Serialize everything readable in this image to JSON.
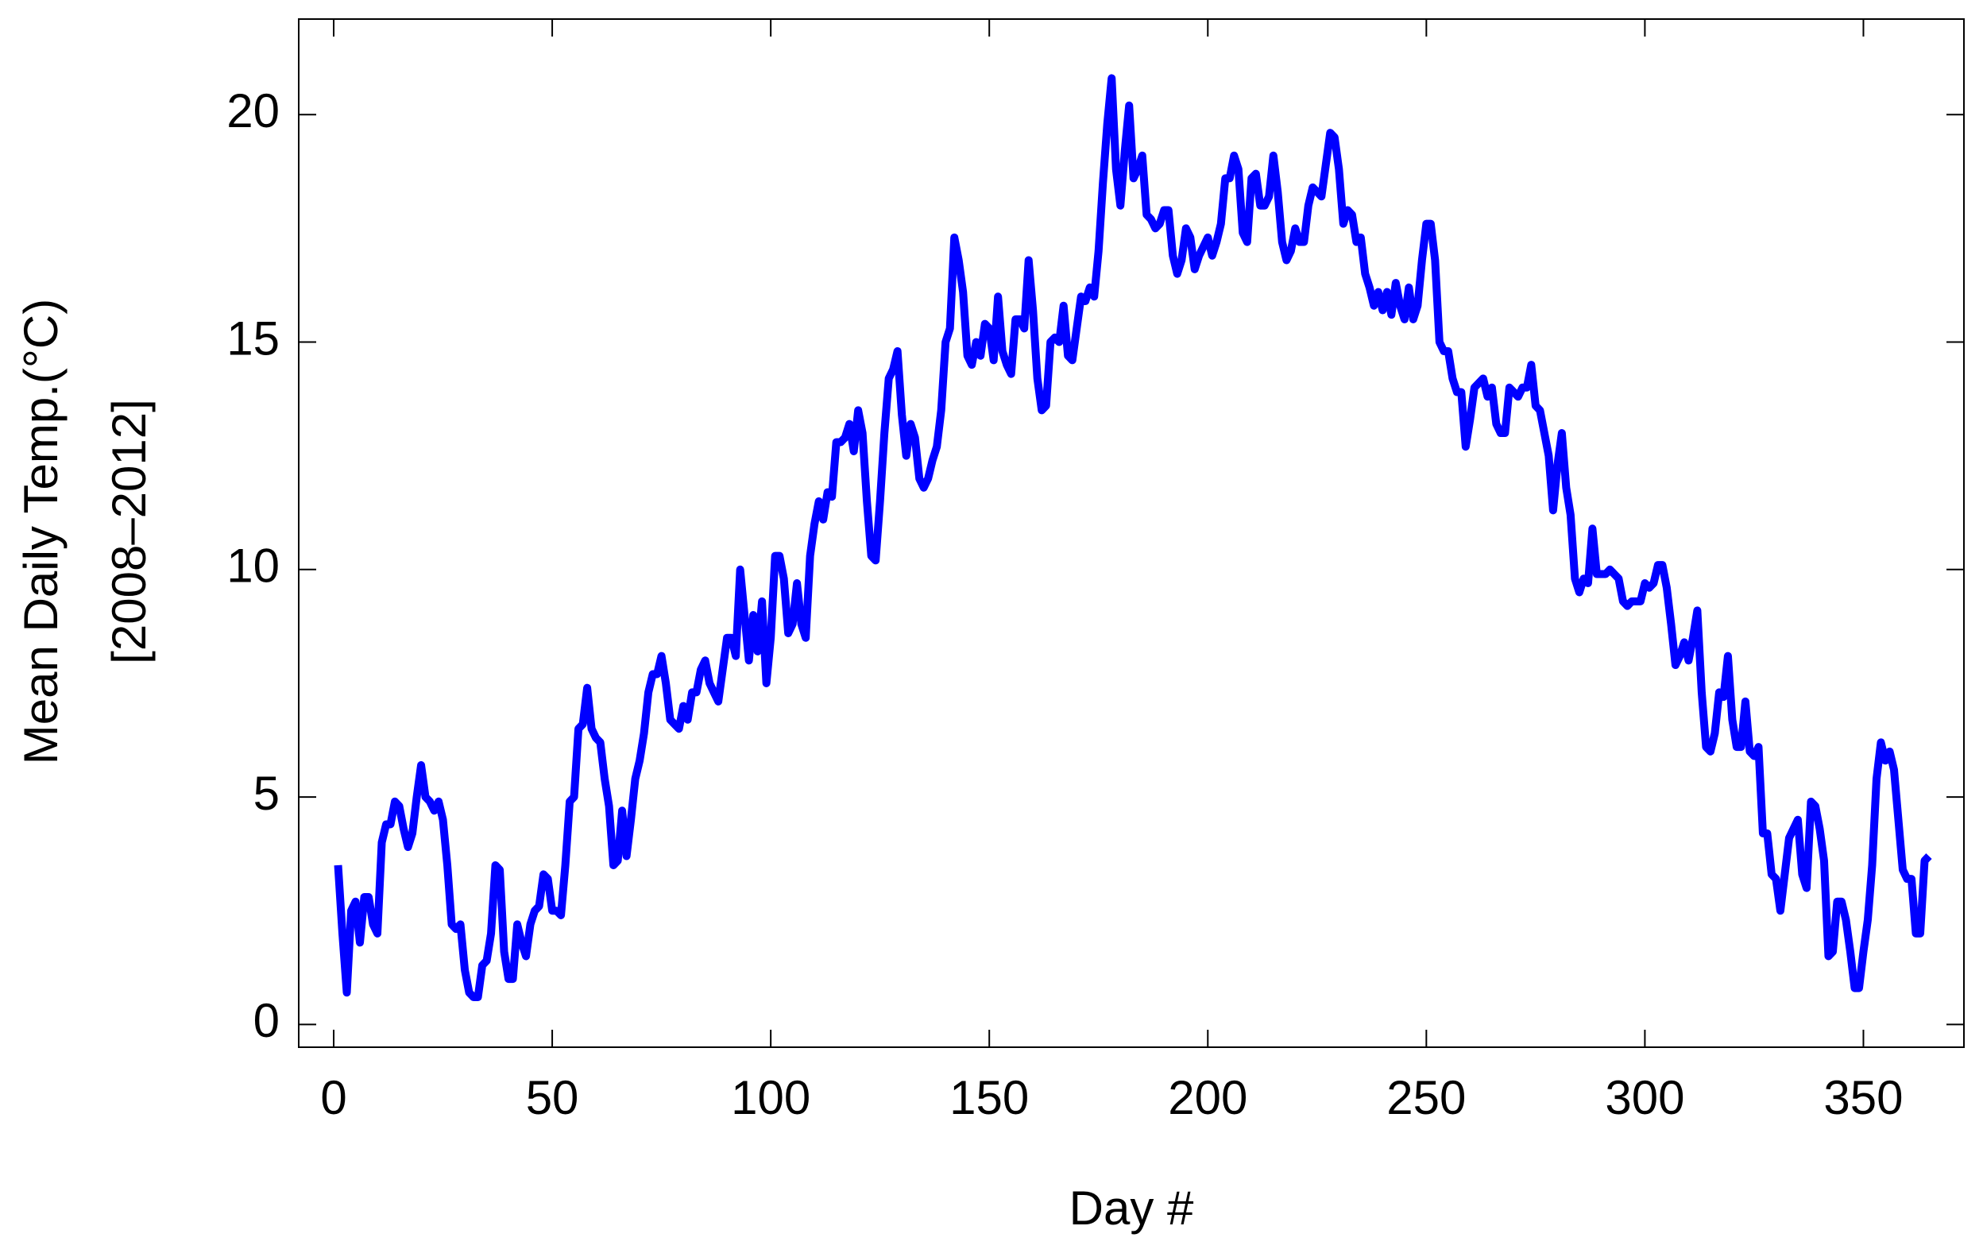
{
  "chart_data": {
    "type": "line",
    "xlabel": "Day #",
    "ylabel": [
      "Mean Daily Temp.(°C)",
      "[2008–2012]"
    ],
    "xlim": [
      -8,
      373
    ],
    "ylim": [
      -0.5,
      22.1
    ],
    "xticks": [
      0,
      50,
      100,
      150,
      200,
      250,
      300,
      350
    ],
    "yticks": [
      0,
      5,
      10,
      15,
      20
    ],
    "series": [
      {
        "color": "#0000ff",
        "x": [
          1,
          2,
          3,
          4,
          5,
          6,
          7,
          8,
          9,
          10,
          11,
          12,
          13,
          14,
          15,
          16,
          17,
          18,
          19,
          20,
          21,
          22,
          23,
          24,
          25,
          26,
          27,
          28,
          29,
          30,
          31,
          32,
          33,
          34,
          35,
          36,
          37,
          38,
          39,
          40,
          41,
          42,
          43,
          44,
          45,
          46,
          47,
          48,
          49,
          50,
          51,
          52,
          53,
          54,
          55,
          56,
          57,
          58,
          59,
          60,
          61,
          62,
          63,
          64,
          65,
          66,
          67,
          68,
          69,
          70,
          71,
          72,
          73,
          74,
          75,
          76,
          77,
          78,
          79,
          80,
          81,
          82,
          83,
          84,
          85,
          86,
          87,
          88,
          89,
          90,
          91,
          92,
          93,
          94,
          95,
          96,
          97,
          98,
          99,
          100,
          101,
          102,
          103,
          104,
          105,
          106,
          107,
          108,
          109,
          110,
          111,
          112,
          113,
          114,
          115,
          116,
          117,
          118,
          119,
          120,
          121,
          122,
          123,
          124,
          125,
          126,
          127,
          128,
          129,
          130,
          131,
          132,
          133,
          134,
          135,
          136,
          137,
          138,
          139,
          140,
          141,
          142,
          143,
          144,
          145,
          146,
          147,
          148,
          149,
          150,
          151,
          152,
          153,
          154,
          155,
          156,
          157,
          158,
          159,
          160,
          161,
          162,
          163,
          164,
          165,
          166,
          167,
          168,
          169,
          170,
          171,
          172,
          173,
          174,
          175,
          176,
          177,
          178,
          179,
          180,
          181,
          182,
          183,
          184,
          185,
          186,
          187,
          188,
          189,
          190,
          191,
          192,
          193,
          194,
          195,
          196,
          197,
          198,
          199,
          200,
          201,
          202,
          203,
          204,
          205,
          206,
          207,
          208,
          209,
          210,
          211,
          212,
          213,
          214,
          215,
          216,
          217,
          218,
          219,
          220,
          221,
          222,
          223,
          224,
          225,
          226,
          227,
          228,
          229,
          230,
          231,
          232,
          233,
          234,
          235,
          236,
          237,
          238,
          239,
          240,
          241,
          242,
          243,
          244,
          245,
          246,
          247,
          248,
          249,
          250,
          251,
          252,
          253,
          254,
          255,
          256,
          257,
          258,
          259,
          260,
          261,
          262,
          263,
          264,
          265,
          266,
          267,
          268,
          269,
          270,
          271,
          272,
          273,
          274,
          275,
          276,
          277,
          278,
          279,
          280,
          281,
          282,
          283,
          284,
          285,
          286,
          287,
          288,
          289,
          290,
          291,
          292,
          293,
          294,
          295,
          296,
          297,
          298,
          299,
          300,
          301,
          302,
          303,
          304,
          305,
          306,
          307,
          308,
          309,
          310,
          311,
          312,
          313,
          314,
          315,
          316,
          317,
          318,
          319,
          320,
          321,
          322,
          323,
          324,
          325,
          326,
          327,
          328,
          329,
          330,
          331,
          332,
          333,
          334,
          335,
          336,
          337,
          338,
          339,
          340,
          341,
          342,
          343,
          344,
          345,
          346,
          347,
          348,
          349,
          350,
          351,
          352,
          353,
          354,
          355,
          356,
          357,
          358,
          359,
          360,
          361,
          362,
          363,
          364,
          365
        ],
        "values": [
          3.5,
          2.0,
          0.7,
          2.5,
          2.7,
          1.8,
          2.8,
          2.8,
          2.2,
          2.0,
          4.0,
          4.4,
          4.4,
          4.9,
          4.8,
          4.3,
          3.9,
          4.2,
          5.0,
          5.7,
          5.0,
          4.9,
          4.7,
          4.9,
          4.5,
          3.5,
          2.2,
          2.1,
          2.2,
          1.2,
          0.7,
          0.6,
          0.6,
          1.3,
          1.4,
          2.0,
          3.5,
          3.4,
          1.6,
          1.0,
          1.0,
          2.2,
          1.8,
          1.5,
          2.2,
          2.5,
          2.6,
          3.3,
          3.2,
          2.5,
          2.5,
          2.4,
          3.5,
          4.9,
          5.0,
          6.5,
          6.6,
          7.4,
          6.5,
          6.3,
          6.2,
          5.4,
          4.8,
          3.5,
          3.6,
          4.7,
          3.7,
          4.5,
          5.4,
          5.8,
          6.4,
          7.3,
          7.7,
          7.7,
          8.1,
          7.5,
          6.7,
          6.6,
          6.5,
          7.0,
          6.7,
          7.3,
          7.3,
          7.8,
          8.0,
          7.5,
          7.3,
          7.1,
          7.8,
          8.5,
          8.5,
          8.1,
          10.0,
          9.0,
          8.0,
          9.0,
          8.2,
          9.3,
          7.5,
          8.5,
          10.3,
          10.3,
          9.8,
          8.6,
          8.8,
          9.7,
          8.8,
          8.5,
          10.3,
          11.0,
          11.5,
          11.1,
          11.7,
          11.6,
          12.8,
          12.8,
          12.9,
          13.2,
          12.6,
          13.5,
          13.0,
          11.5,
          10.3,
          10.2,
          11.5,
          13.0,
          14.2,
          14.4,
          14.8,
          13.4,
          12.5,
          13.2,
          12.9,
          12.0,
          11.8,
          12.0,
          12.4,
          12.7,
          13.5,
          15.0,
          15.3,
          17.3,
          16.8,
          16.1,
          14.7,
          14.5,
          15.0,
          14.7,
          15.4,
          15.3,
          14.6,
          16.0,
          14.8,
          14.5,
          14.3,
          15.5,
          15.5,
          15.3,
          16.8,
          15.7,
          14.2,
          13.5,
          13.6,
          15.0,
          15.1,
          15.0,
          15.8,
          14.7,
          14.6,
          15.3,
          16.0,
          15.9,
          16.2,
          16.0,
          17.0,
          18.5,
          19.8,
          20.8,
          18.8,
          18.0,
          19.2,
          20.2,
          18.6,
          18.8,
          19.1,
          17.8,
          17.7,
          17.5,
          17.6,
          17.9,
          17.9,
          16.9,
          16.5,
          16.8,
          17.5,
          17.3,
          16.6,
          16.9,
          17.1,
          17.3,
          16.9,
          17.2,
          17.6,
          18.6,
          18.6,
          19.1,
          18.8,
          17.4,
          17.2,
          18.6,
          18.7,
          18.0,
          18.0,
          18.2,
          19.1,
          18.3,
          17.2,
          16.8,
          17.0,
          17.5,
          17.2,
          17.2,
          18.0,
          18.4,
          18.3,
          18.2,
          18.9,
          19.6,
          19.5,
          18.8,
          17.6,
          17.9,
          17.8,
          17.2,
          17.3,
          16.5,
          16.2,
          15.8,
          16.1,
          15.7,
          16.1,
          15.6,
          16.3,
          15.8,
          15.5,
          16.2,
          15.5,
          15.8,
          16.8,
          17.6,
          17.6,
          16.8,
          15.0,
          14.8,
          14.8,
          14.2,
          13.9,
          13.9,
          12.7,
          13.3,
          14.0,
          14.1,
          14.2,
          13.8,
          14.0,
          13.2,
          13.0,
          13.0,
          14.0,
          13.9,
          13.8,
          14.0,
          14.0,
          14.5,
          13.6,
          13.5,
          13.0,
          12.5,
          11.3,
          12.3,
          13.0,
          11.8,
          11.2,
          9.8,
          9.5,
          9.8,
          9.7,
          10.9,
          9.9,
          9.9,
          9.9,
          10.0,
          9.9,
          9.8,
          9.3,
          9.2,
          9.3,
          9.3,
          9.3,
          9.7,
          9.6,
          9.7,
          10.1,
          10.1,
          9.6,
          8.8,
          7.9,
          8.1,
          8.4,
          8.0,
          8.5,
          9.1,
          7.3,
          6.1,
          6.0,
          6.4,
          7.3,
          7.2,
          8.1,
          6.7,
          6.1,
          6.1,
          7.1,
          6.0,
          5.9,
          6.1,
          4.2,
          4.2,
          3.3,
          3.2,
          2.5,
          3.3,
          4.1,
          4.3,
          4.5,
          3.3,
          3.0,
          4.9,
          4.8,
          4.3,
          3.6,
          1.5,
          1.6,
          2.7,
          2.7,
          2.3,
          1.6,
          0.8,
          0.8,
          1.6,
          2.3,
          3.5,
          5.4,
          6.2,
          5.8,
          6.0,
          5.6,
          4.5,
          3.4,
          3.2,
          3.2,
          2.0,
          2.0,
          3.6,
          3.7
        ]
      }
    ]
  }
}
